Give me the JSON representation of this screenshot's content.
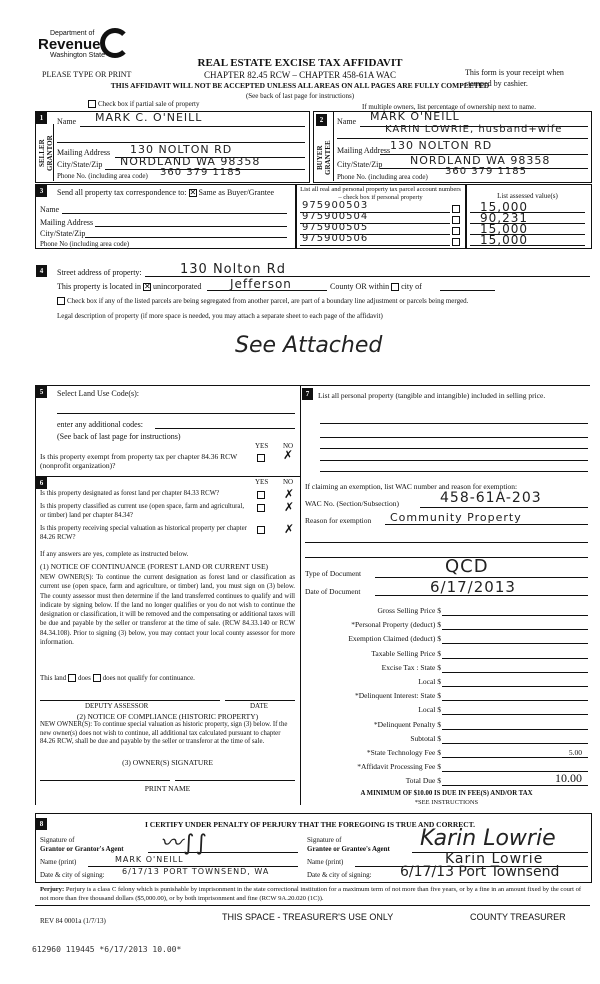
{
  "header": {
    "logo_line1": "Department of",
    "logo_line2": "Revenue",
    "logo_line3": "Washington State",
    "please": "PLEASE TYPE OR PRINT",
    "title": "REAL ESTATE EXCISE TAX AFFIDAVIT",
    "subtitle": "CHAPTER 82.45 RCW – CHAPTER 458-61A WAC",
    "warning": "THIS AFFIDAVIT WILL NOT BE ACCEPTED UNLESS ALL AREAS ON ALL PAGES ARE FULLY COMPLETED",
    "see_back": "(See back of last page for instructions)",
    "receipt": "This form is your receipt when stamped by cashier.",
    "partial_sale": "Check box if partial sale of property",
    "multiple_owners": "If multiple owners, list percentage of ownership next to name."
  },
  "seller": {
    "num": "1",
    "side_label": "SELLER GRANTOR",
    "name_label": "Name",
    "name": "MARK C. O'NEILL",
    "mail_label": "Mailing Address",
    "mail": "130 NOLTON RD",
    "city_label": "City/State/Zip",
    "city": "NORDLAND WA 98358",
    "phone_label": "Phone No. (including area code)",
    "phone": "360 379 1185"
  },
  "buyer": {
    "num": "2",
    "side_label": "BUYER GRANTEE",
    "name_label": "Name",
    "name": "MARK O'NEILL",
    "name2": "KARIN LOWRIE, husband+wife",
    "mail_label": "Mailing Address",
    "mail": "130 NOLTON RD",
    "city_label": "City/State/Zip",
    "city": "NORDLAND WA 98358",
    "phone_label": "Phone No. (including area code)",
    "phone": "360 379 1185"
  },
  "section3": {
    "num": "3",
    "send_label": "Send all property tax correspondence to:",
    "same_label": "Same as Buyer/Grantee",
    "same_checked": true,
    "name_label": "Name",
    "mail_label": "Mailing Address",
    "city_label": "City/State/Zip",
    "phone_label": "Phone No (including area code)",
    "parcels_header": "List all real and personal property tax parcel account numbers – check box if personal property",
    "assessed_header": "List assessed value(s)",
    "parcels": [
      "975900503",
      "975900504",
      "975900505",
      "975900506"
    ],
    "assessed": [
      "15,000",
      "90,231",
      "15,000",
      "15,000"
    ]
  },
  "section4": {
    "num": "4",
    "street_label": "Street address of property:",
    "street": "130 Nolton Rd",
    "located_label": "This property is located in",
    "unincorporated_label": "unincorporated",
    "unincorporated_checked": true,
    "county": "Jefferson",
    "county_label": "County OR within",
    "city_label": "city of",
    "segregated_label": "Check box if any of the listed parcels are being segregated from another parcel, are part of a boundary line adjustment or parcels being merged.",
    "legal_label": "Legal description of property (if more space is needed, you may attach a separate sheet to each page of the affidavit)",
    "legal": "See Attached"
  },
  "section5": {
    "num": "5",
    "land_use_label": "Select Land Use Code(s):",
    "additional_label": "enter any additional codes:",
    "instructions": "(See back of last page for instructions)",
    "yes": "YES",
    "no": "NO",
    "exempt_q": "Is this property exempt from property tax per chapter 84.36 RCW (nonprofit organization)?",
    "exempt_answer": "NO"
  },
  "section6": {
    "num": "6",
    "yes": "YES",
    "no": "NO",
    "questions": [
      {
        "q": "Is this property designated as forest land per chapter 84.33 RCW?",
        "answer": "NO"
      },
      {
        "q": "Is this property classified as current use (open space, farm and agricultural, or timber) land per chapter 84.34?",
        "answer": "NO"
      },
      {
        "q": "Is this property receiving special valuation as historical property per chapter 84.26 RCW?",
        "answer": "NO"
      }
    ],
    "if_yes": "If any answers are yes, complete as instructed below.",
    "notice1_title": "(1) NOTICE OF CONTINUANCE (FOREST LAND OR CURRENT USE)",
    "notice1_text": "NEW OWNER(S): To continue the current designation as forest land or classification as current use (open space, farm and agriculture, or timber) land, you must sign on (3) below. The county assessor must then determine if the land transferred continues to qualify and will indicate by signing below. If the land no longer qualifies or you do not wish to continue the designation or classification, it will be removed and the compensating or additional taxes will be due and payable by the seller or transferor at the time of sale. (RCW 84.33.140 or RCW 84.34.108). Prior to signing (3) below, you may contact your local county assessor for more information.",
    "this_land": "This land",
    "does": "does",
    "does_not": "does not",
    "qualify": "qualify for continuance.",
    "deputy": "DEPUTY ASSESSOR",
    "date": "DATE",
    "notice2_title": "(2) NOTICE OF COMPLIANCE (HISTORIC PROPERTY)",
    "notice2_text": "NEW OWNER(S): To continue special valuation as historic property, sign (3) below. If the new owner(s) does not wish to continue, all additional tax calculated pursuant to chapter 84.26 RCW, shall be due and payable by the seller or transferor at the time of sale.",
    "owner_sig": "(3) OWNER(S) SIGNATURE",
    "print_name": "PRINT NAME"
  },
  "section7": {
    "num": "7",
    "personal_label": "List all personal property (tangible and intangible) included in selling price.",
    "exemption_label": "If claiming an exemption, list WAC number and reason for exemption:",
    "wac_label": "WAC No. (Section/Subsection)",
    "wac": "458-61A-203",
    "reason_label": "Reason for exemption",
    "reason": "Community Property",
    "doc_type_label": "Type of Document",
    "doc_type": "QCD",
    "doc_date_label": "Date of Document",
    "doc_date": "6/17/2013",
    "fees": [
      {
        "label": "Gross Selling Price $",
        "value": ""
      },
      {
        "label": "*Personal Property (deduct) $",
        "value": ""
      },
      {
        "label": "Exemption Claimed (deduct) $",
        "value": ""
      },
      {
        "label": "Taxable Selling Price $",
        "value": ""
      },
      {
        "label": "Excise Tax : State $",
        "value": ""
      },
      {
        "label": "Local $",
        "value": ""
      },
      {
        "label": "*Delinquent Interest: State $",
        "value": ""
      },
      {
        "label": "Local $",
        "value": ""
      },
      {
        "label": "*Delinquent Penalty $",
        "value": ""
      },
      {
        "label": "Subtotal $",
        "value": ""
      },
      {
        "label": "*State Technology Fee $",
        "value": "5.00"
      },
      {
        "label": "*Affidavit Processing Fee $",
        "value": ""
      },
      {
        "label": "Total Due $",
        "value": "10.00"
      }
    ],
    "minimum": "A MINIMUM OF $10.00 IS DUE IN FEE(S) AND/OR TAX",
    "see_instr": "*SEE INSTRUCTIONS"
  },
  "section8": {
    "num": "8",
    "certify": "I CERTIFY UNDER PENALTY OF PERJURY THAT THE FOREGOING IS TRUE AND CORRECT.",
    "sig_of": "Signature of",
    "grantor_agent": "Grantor or Grantor's Agent",
    "grantee_agent": "Grantee or Grantee's Agent",
    "name_print": "Name (print)",
    "date_city": "Date & city of signing:",
    "grantor_name": "MARK O'NEILL",
    "grantor_date": "6/17/13 PORT TOWNSEND, WA",
    "grantee_sig": "Karin Lowrie",
    "grantee_name": "Karin Lowrie",
    "grantee_date": "6/17/13 Port Townsend"
  },
  "footer": {
    "perjury_bold": "Perjury:",
    "perjury": "Perjury is a class C felony which is punishable by imprisonment in the state correctional institution for a maximum term of not more than five years, or by a fine in an amount fixed by the court of not more than five thousand dollars ($5,000.00), or by both imprisonment and fine (RCW 9A.20.020 (1C)).",
    "rev": "REV 84 0001a (1/7/13)",
    "treasurer_space": "THIS SPACE - TREASURER'S USE ONLY",
    "county_treasurer": "COUNTY TREASURER",
    "stamp": "612960 119445 *6/17/2013 10.00*"
  }
}
